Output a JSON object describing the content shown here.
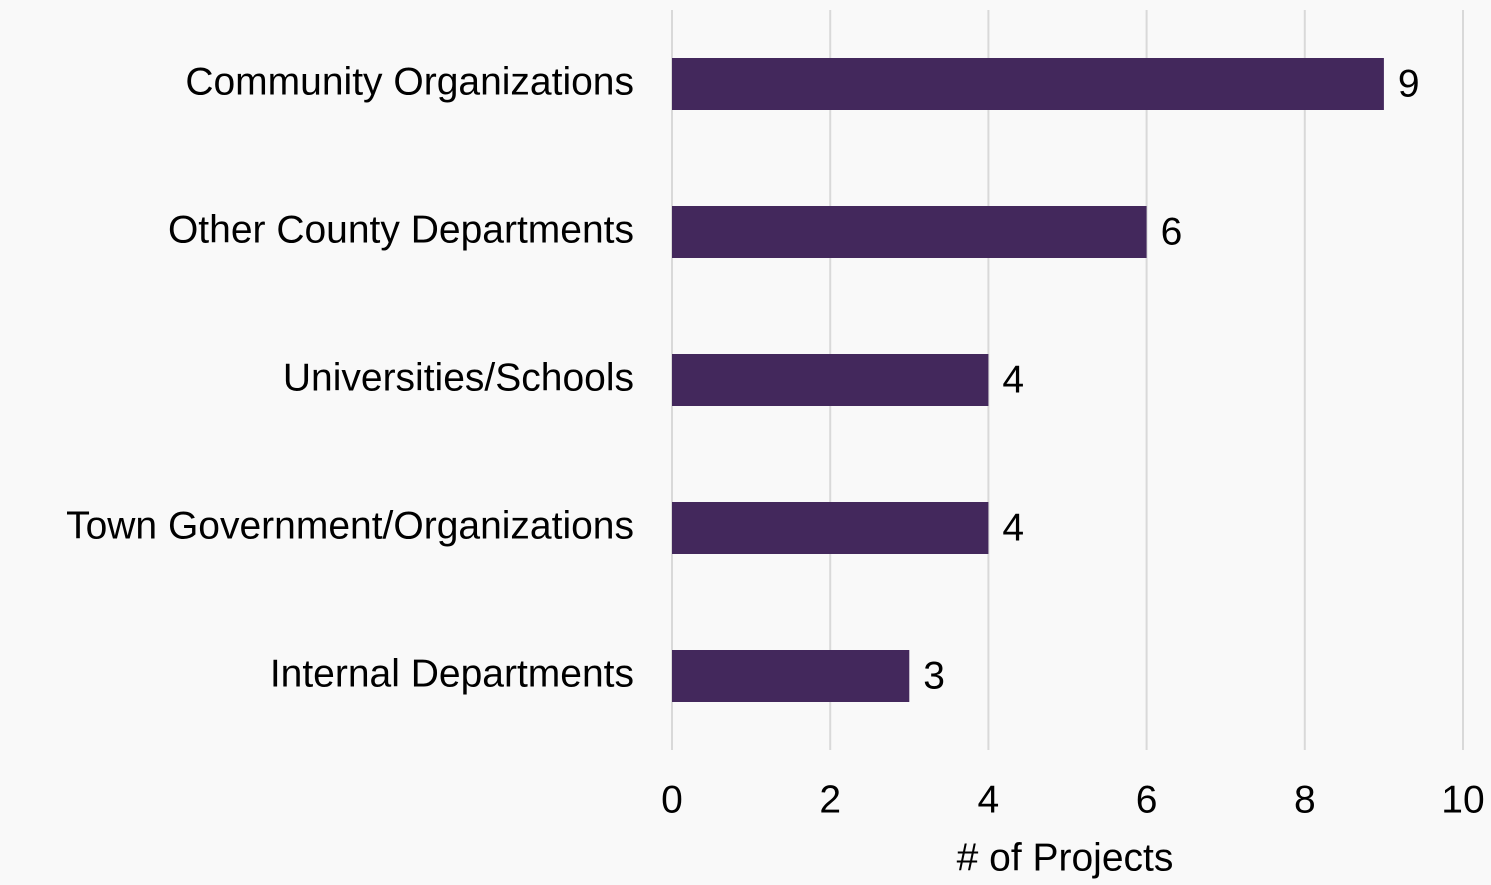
{
  "chart_data": {
    "type": "barh",
    "categories": [
      "Community Organizations",
      "Other County Departments",
      "Universities/Schools",
      "Town Government/Organizations",
      "Internal Departments"
    ],
    "values": [
      9,
      6,
      4,
      4,
      3
    ],
    "color": "#43285c",
    "x_label": "# of Projects",
    "xlim": [
      0,
      10
    ],
    "xticks": [
      0,
      2,
      4,
      6,
      8,
      10
    ],
    "grid": true
  }
}
